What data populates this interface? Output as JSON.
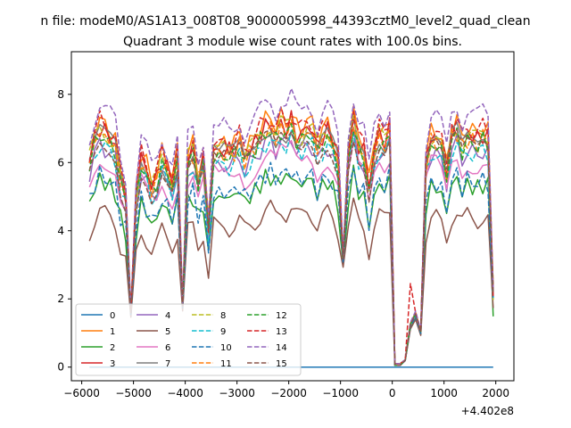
{
  "figure": {
    "suptitle": "n file: modeM0/AS1A13_008T08_9000005998_44393cztM0_level2_quad_clean",
    "offset_text": "+4.402e8"
  },
  "chart_data": {
    "type": "line",
    "title": "Quadrant 3 module wise count rates with 100.0s bins.",
    "xlabel": "",
    "ylabel": "",
    "x_offset": 440200000,
    "xlim": [
      -6200,
      2350
    ],
    "ylim": [
      -0.4,
      9.25
    ],
    "xticks": [
      -6000,
      -5000,
      -4000,
      -3000,
      -2000,
      -1000,
      0,
      1000,
      2000
    ],
    "xtick_labels": [
      "−6000",
      "−5000",
      "−4000",
      "−3000",
      "−2000",
      "−1000",
      "0",
      "1000",
      "2000"
    ],
    "yticks": [
      0,
      2,
      4,
      6,
      8
    ],
    "ytick_labels": [
      "0",
      "2",
      "4",
      "6",
      "8"
    ],
    "grid": false,
    "legend_placement": "lower-left",
    "legend_columns": 4,
    "x": [
      -5850,
      -5750,
      -5650,
      -5550,
      -5450,
      -5350,
      -5250,
      -5150,
      -5050,
      -4950,
      -4850,
      -4750,
      -4650,
      -4550,
      -4450,
      -4350,
      -4250,
      -4150,
      -4050,
      -3950,
      -3850,
      -3750,
      -3650,
      -3550,
      -3450,
      -3350,
      -3250,
      -3150,
      -3050,
      -2950,
      -2850,
      -2750,
      -2650,
      -2550,
      -2450,
      -2350,
      -2250,
      -2150,
      -2050,
      -1950,
      -1850,
      -1750,
      -1650,
      -1550,
      -1450,
      -1350,
      -1250,
      -1150,
      -1050,
      -950,
      -850,
      -750,
      -650,
      -550,
      -450,
      -350,
      -250,
      -150,
      -50,
      50,
      150,
      250,
      350,
      450,
      550,
      650,
      750,
      850,
      950,
      1050,
      1150,
      1250,
      1350,
      1450,
      1550,
      1650,
      1750,
      1850,
      1950
    ],
    "base": [
      6.0,
      6.55,
      6.9,
      6.75,
      6.6,
      6.4,
      5.4,
      4.95,
      1.6,
      4.9,
      6.0,
      5.7,
      5.2,
      5.45,
      6.0,
      5.7,
      5.45,
      6.0,
      1.8,
      6.0,
      6.25,
      5.45,
      6.0,
      4.0,
      6.3,
      6.1,
      6.3,
      6.2,
      6.3,
      6.5,
      6.05,
      6.25,
      6.45,
      6.7,
      6.9,
      7.0,
      6.7,
      7.0,
      6.85,
      7.1,
      6.7,
      6.65,
      6.95,
      6.8,
      6.3,
      6.65,
      6.8,
      6.5,
      6.0,
      3.2,
      6.2,
      7.1,
      6.4,
      6.25,
      5.2,
      6.25,
      6.7,
      6.5,
      6.9,
      0.25,
      0.1,
      0.2,
      1.2,
      1.5,
      1.0,
      5.9,
      6.6,
      6.6,
      6.3,
      5.7,
      6.7,
      6.9,
      6.4,
      6.7,
      6.6,
      6.55,
      6.7,
      6.6,
      2.2
    ],
    "series_names": [
      "0",
      "1",
      "2",
      "3",
      "4",
      "5",
      "6",
      "7",
      "8",
      "9",
      "10",
      "11",
      "12",
      "13",
      "14",
      "15"
    ],
    "series_colors": [
      "#1f77b4",
      "#ff7f0e",
      "#2ca02c",
      "#d62728",
      "#9467bd",
      "#8c564b",
      "#e377c2",
      "#7f7f7f",
      "#bcbd22",
      "#17becf",
      "#1f77b4",
      "#ff7f0e",
      "#2ca02c",
      "#d62728",
      "#9467bd",
      "#8c564b"
    ],
    "series_styles": [
      "solid",
      "solid",
      "solid",
      "solid",
      "solid",
      "solid",
      "solid",
      "solid",
      "dashed",
      "dashed",
      "dashed",
      "dashed",
      "dashed",
      "dashed",
      "dashed",
      "dashed"
    ],
    "series_factors": [
      0.0,
      1.05,
      0.8,
      1.02,
      0.95,
      0.66,
      0.9,
      1.0,
      1.02,
      0.95,
      0.82,
      1.0,
      0.99,
      1.05,
      1.12,
      0.97
    ],
    "series_zero_dip_values": [
      0.0,
      0.1,
      0.05,
      0.1,
      0.05,
      0.05,
      0.05,
      0.05,
      0.1,
      0.05,
      0.05,
      0.1,
      0.05,
      0.1,
      0.1,
      0.05
    ],
    "series_peak_value_13": 2.45
  }
}
